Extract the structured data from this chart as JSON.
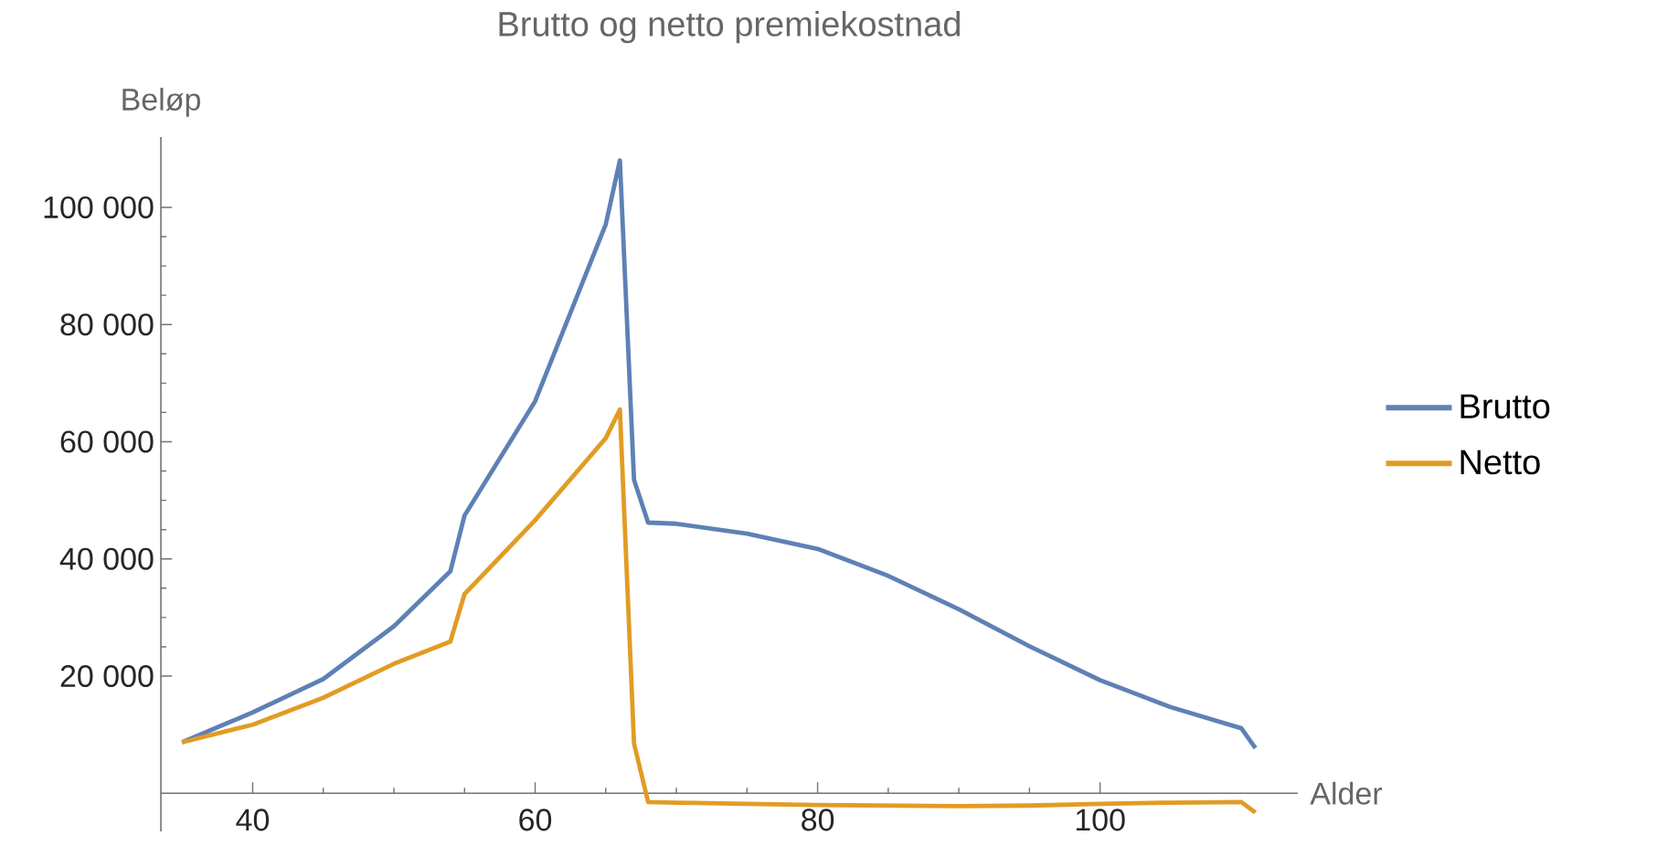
{
  "chart_data": {
    "type": "line",
    "title": "Brutto og netto premiekostnad",
    "xlabel": "Alder",
    "ylabel": "Beløp",
    "x": [
      35,
      40,
      45,
      50,
      54,
      55,
      60,
      65,
      66,
      67,
      68,
      70,
      75,
      80,
      85,
      90,
      95,
      100,
      105,
      110,
      111
    ],
    "series": [
      {
        "name": "Brutto",
        "color": "#5e81b5",
        "values": [
          8700,
          13800,
          19500,
          28500,
          37900,
          47400,
          66900,
          97100,
          108000,
          53500,
          46200,
          46000,
          44300,
          41700,
          37100,
          31400,
          25100,
          19300,
          14700,
          11100,
          7700
        ]
      },
      {
        "name": "Netto",
        "color": "#e19c24",
        "values": [
          8700,
          11700,
          16300,
          22100,
          25900,
          34000,
          46600,
          60600,
          65500,
          8500,
          -1500,
          -1600,
          -1800,
          -2000,
          -2100,
          -2200,
          -2100,
          -1800,
          -1600,
          -1500,
          -3300
        ]
      }
    ],
    "xlim": [
      33.5,
      114
    ],
    "ylim": [
      -6500,
      112000
    ],
    "xticks": [
      40,
      60,
      80,
      100
    ],
    "yticks": [
      {
        "value": 20000,
        "label": "20 000"
      },
      {
        "value": 40000,
        "label": "40 000"
      },
      {
        "value": 60000,
        "label": "60 000"
      },
      {
        "value": 80000,
        "label": "80 000"
      },
      {
        "value": 100000,
        "label": "100 000"
      }
    ],
    "legend": "right"
  }
}
